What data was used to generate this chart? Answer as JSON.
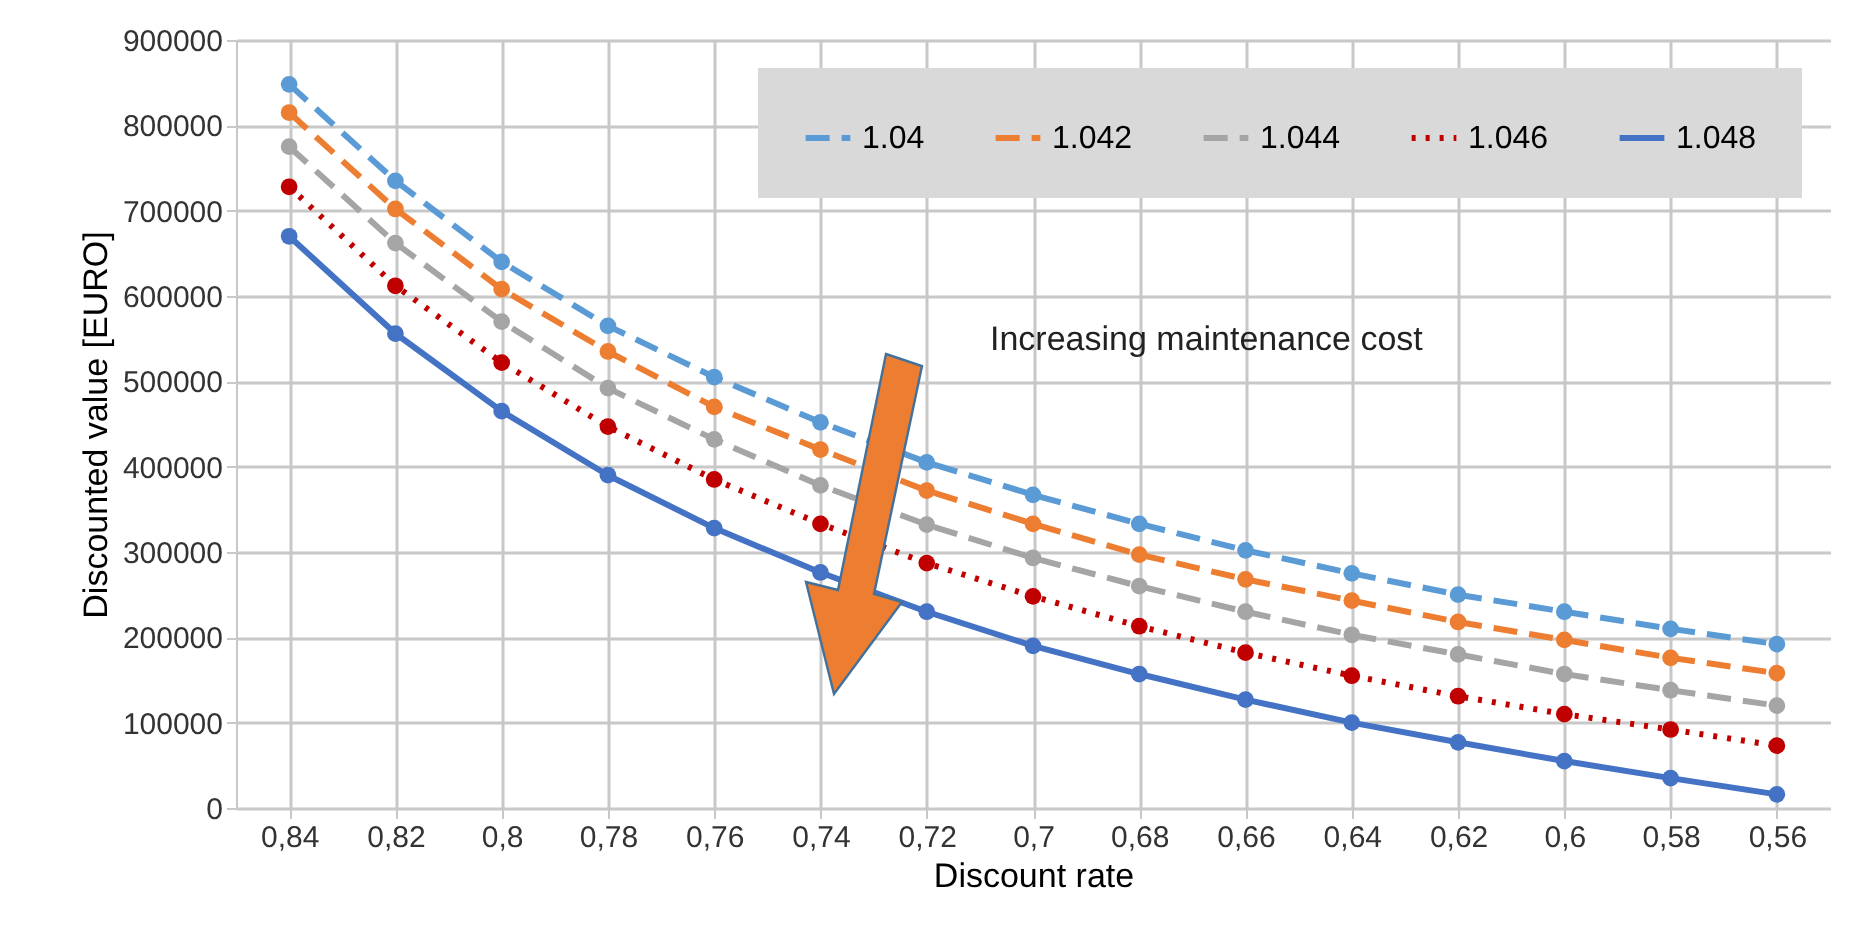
{
  "chart_data": {
    "type": "line",
    "xlabel": "Discount rate",
    "ylabel": "Discounted value [EURO]",
    "categories": [
      "0,84",
      "0,82",
      "0,8",
      "0,78",
      "0,76",
      "0,74",
      "0,72",
      "0,7",
      "0,68",
      "0,66",
      "0,64",
      "0,62",
      "0,6",
      "0,58",
      "0,56"
    ],
    "ylim": [
      0,
      900000
    ],
    "yticks": [
      0,
      100000,
      200000,
      300000,
      400000,
      500000,
      600000,
      700000,
      800000,
      900000
    ],
    "grid": true,
    "legend": "top right",
    "marker": "circle",
    "annotations": [
      "Increasing maintenance cost"
    ],
    "series": [
      {
        "name": "1.04",
        "color": "#5b9bd5",
        "line_style": "dashed",
        "values": [
          848000,
          735000,
          640000,
          565000,
          505000,
          452000,
          405000,
          367000,
          333000,
          302000,
          275000,
          250000,
          230000,
          210000,
          192000
        ]
      },
      {
        "name": "1.042",
        "color": "#ed7d31",
        "line_style": "dashed",
        "values": [
          815000,
          702000,
          608000,
          535000,
          470000,
          420000,
          372000,
          333000,
          297000,
          268000,
          243000,
          218000,
          197000,
          176000,
          158000
        ]
      },
      {
        "name": "1.044",
        "color": "#a5a5a5",
        "line_style": "dashed",
        "values": [
          775000,
          662000,
          570000,
          492000,
          432000,
          378000,
          332000,
          293000,
          260000,
          230000,
          203000,
          180000,
          157000,
          138000,
          120000
        ]
      },
      {
        "name": "1.046",
        "color": "#c00000",
        "line_style": "dotted",
        "values": [
          728000,
          612000,
          522000,
          447000,
          385000,
          333000,
          287000,
          248000,
          213000,
          182000,
          155000,
          131000,
          110000,
          92000,
          73000
        ]
      },
      {
        "name": "1.048",
        "color": "#4472c4",
        "line_style": "solid",
        "values": [
          670000,
          556000,
          465000,
          390000,
          328000,
          276000,
          230000,
          190000,
          157000,
          127000,
          100000,
          77000,
          55000,
          35000,
          16000
        ]
      }
    ]
  }
}
